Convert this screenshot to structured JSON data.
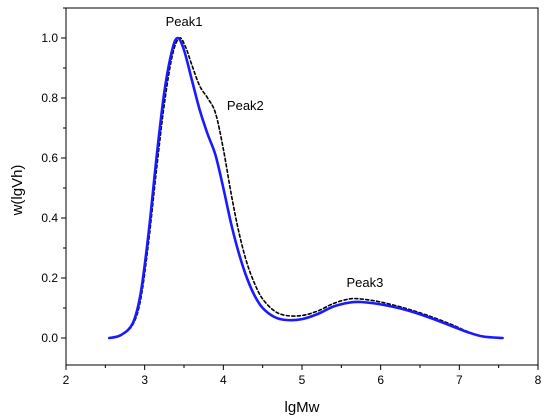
{
  "chart_data": {
    "type": "line",
    "title": "",
    "xlabel": "lgMw",
    "ylabel": "w(lgVh)",
    "xlim": [
      2,
      8
    ],
    "ylim": [
      -0.09,
      1.1
    ],
    "x_ticks": [
      "2",
      "3",
      "4",
      "5",
      "6",
      "7",
      "8"
    ],
    "y_ticks": [
      "0.0",
      "0.2",
      "0.4",
      "0.6",
      "0.8",
      "1.0"
    ],
    "grid": false,
    "legend": "none",
    "series": [
      {
        "style": "solid",
        "color": "#1a1aff",
        "points": [
          [
            2.55,
            0.0
          ],
          [
            2.7,
            0.01
          ],
          [
            2.85,
            0.05
          ],
          [
            2.95,
            0.15
          ],
          [
            3.05,
            0.35
          ],
          [
            3.15,
            0.6
          ],
          [
            3.25,
            0.82
          ],
          [
            3.35,
            0.96
          ],
          [
            3.42,
            1.0
          ],
          [
            3.5,
            0.96
          ],
          [
            3.6,
            0.86
          ],
          [
            3.7,
            0.76
          ],
          [
            3.8,
            0.68
          ],
          [
            3.9,
            0.61
          ],
          [
            4.0,
            0.5
          ],
          [
            4.1,
            0.38
          ],
          [
            4.2,
            0.28
          ],
          [
            4.3,
            0.2
          ],
          [
            4.4,
            0.14
          ],
          [
            4.5,
            0.1
          ],
          [
            4.65,
            0.07
          ],
          [
            4.8,
            0.06
          ],
          [
            5.0,
            0.063
          ],
          [
            5.2,
            0.08
          ],
          [
            5.4,
            0.105
          ],
          [
            5.6,
            0.118
          ],
          [
            5.75,
            0.12
          ],
          [
            6.0,
            0.112
          ],
          [
            6.3,
            0.095
          ],
          [
            6.6,
            0.07
          ],
          [
            6.9,
            0.04
          ],
          [
            7.1,
            0.02
          ],
          [
            7.3,
            0.005
          ],
          [
            7.55,
            0.0
          ]
        ]
      },
      {
        "style": "dashed",
        "color": "#000000",
        "points": [
          [
            2.55,
            0.0
          ],
          [
            2.7,
            0.01
          ],
          [
            2.85,
            0.045
          ],
          [
            2.95,
            0.13
          ],
          [
            3.05,
            0.32
          ],
          [
            3.15,
            0.56
          ],
          [
            3.25,
            0.78
          ],
          [
            3.35,
            0.94
          ],
          [
            3.44,
            1.0
          ],
          [
            3.52,
            0.97
          ],
          [
            3.6,
            0.91
          ],
          [
            3.7,
            0.84
          ],
          [
            3.8,
            0.8
          ],
          [
            3.9,
            0.75
          ],
          [
            4.0,
            0.63
          ],
          [
            4.1,
            0.48
          ],
          [
            4.2,
            0.35
          ],
          [
            4.3,
            0.25
          ],
          [
            4.4,
            0.18
          ],
          [
            4.5,
            0.13
          ],
          [
            4.65,
            0.09
          ],
          [
            4.8,
            0.075
          ],
          [
            5.0,
            0.075
          ],
          [
            5.2,
            0.09
          ],
          [
            5.4,
            0.115
          ],
          [
            5.6,
            0.13
          ],
          [
            5.75,
            0.13
          ],
          [
            6.0,
            0.12
          ],
          [
            6.3,
            0.1
          ],
          [
            6.6,
            0.075
          ],
          [
            6.9,
            0.045
          ],
          [
            7.1,
            0.022
          ],
          [
            7.3,
            0.006
          ],
          [
            7.55,
            0.0
          ]
        ]
      }
    ],
    "annotations": [
      {
        "text": "Peak1",
        "x": 3.5,
        "y": 1.04
      },
      {
        "text": "Peak2",
        "x": 4.28,
        "y": 0.76
      },
      {
        "text": "Peak3",
        "x": 5.8,
        "y": 0.17
      }
    ]
  }
}
